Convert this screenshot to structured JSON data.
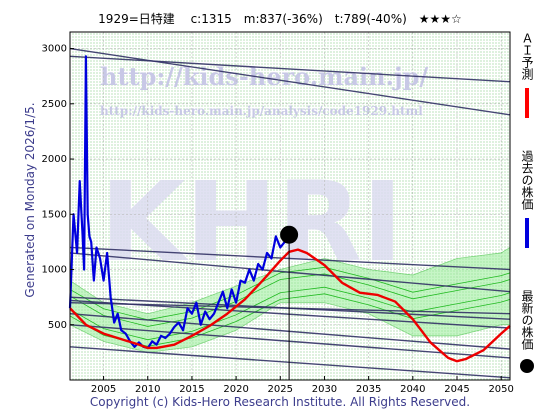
{
  "header": {
    "title": "1929=日特建 　c:1315　m:837(-36%)　t:789(-40%)　★★★☆"
  },
  "side_text": {
    "generated": "Generated on Monday 2026/1/5."
  },
  "footer": {
    "copyright": "Copyright (c) Kids-Hero Research Institute. All Rights Reserved."
  },
  "watermark": {
    "url_main": "http://kids-hero.main.jp/",
    "url_analysis": "http://kids-hero.main.jp/analysis/code1929.html",
    "logo": "KHRI"
  },
  "legend": {
    "items": [
      {
        "label": "ＡＩ予測",
        "color": "#ff0000",
        "symbol": "line"
      },
      {
        "label": "過去の株価",
        "color": "#0000dd",
        "symbol": "line"
      },
      {
        "label": "最新の株価",
        "color": "#000000",
        "symbol": "dot"
      }
    ]
  },
  "colors": {
    "blue_line": "#0000dd",
    "red_line": "#ee0000",
    "green_band": "#22bb22",
    "channel_line": "#333366",
    "yellow_fill": "#ffff99",
    "green_fill": "#99ee99"
  },
  "chart_data": {
    "type": "line",
    "title": "1929=日特建 c:1315 m:837(-36%) t:789(-40%) ★★★☆",
    "xlabel": "",
    "ylabel": "",
    "xlim": [
      2001.2,
      2051
    ],
    "ylim": [
      0,
      3150
    ],
    "x_ticks": [
      2005,
      2010,
      2015,
      2020,
      2025,
      2030,
      2035,
      2040,
      2045,
      2050
    ],
    "y_ticks": [
      500,
      1000,
      1500,
      2000,
      2500,
      3000
    ],
    "grid": true,
    "current_point": {
      "x": 2026.0,
      "y": 1315
    },
    "series": [
      {
        "name": "過去の株価",
        "x": [
          2001.2,
          2001.6,
          2002.0,
          2002.3,
          2002.6,
          2002.8,
          2003.0,
          2003.2,
          2003.4,
          2003.6,
          2003.9,
          2004.2,
          2004.6,
          2005.0,
          2005.4,
          2005.8,
          2006.2,
          2006.6,
          2007.0,
          2007.5,
          2008.0,
          2008.5,
          2009.0,
          2009.5,
          2010.0,
          2010.5,
          2011.0,
          2011.5,
          2012.0,
          2012.5,
          2013.0,
          2013.5,
          2014.0,
          2014.5,
          2015.0,
          2015.5,
          2016.0,
          2016.5,
          2017.0,
          2017.5,
          2018.0,
          2018.5,
          2019.0,
          2019.5,
          2020.0,
          2020.5,
          2021.0,
          2021.5,
          2022.0,
          2022.5,
          2023.0,
          2023.5,
          2024.0,
          2024.5,
          2025.0,
          2025.5,
          2026.0
        ],
        "y": [
          650,
          1500,
          1150,
          1800,
          1350,
          1000,
          2930,
          1500,
          1300,
          1250,
          900,
          1200,
          1100,
          900,
          1150,
          750,
          520,
          600,
          450,
          420,
          350,
          300,
          340,
          300,
          290,
          350,
          320,
          400,
          380,
          420,
          480,
          520,
          450,
          650,
          600,
          700,
          500,
          620,
          550,
          600,
          700,
          800,
          650,
          820,
          700,
          900,
          880,
          1000,
          900,
          1050,
          1000,
          1150,
          1100,
          1300,
          1200,
          1250,
          1315
        ]
      },
      {
        "name": "ＡＩ予測",
        "x": [
          2001.2,
          2003,
          2005,
          2007,
          2009,
          2010,
          2011,
          2013,
          2015,
          2017,
          2019,
          2021,
          2023,
          2025,
          2026,
          2027,
          2028,
          2030,
          2032,
          2034,
          2036,
          2038,
          2040,
          2042,
          2044,
          2045,
          2046,
          2048,
          2050,
          2051
        ],
        "y": [
          650,
          500,
          420,
          370,
          320,
          290,
          290,
          320,
          400,
          490,
          600,
          730,
          900,
          1080,
          1160,
          1180,
          1150,
          1040,
          880,
          790,
          770,
          710,
          550,
          340,
          200,
          170,
          190,
          270,
          420,
          490
        ]
      }
    ],
    "trend_lines": [
      {
        "x": [
          2001.2,
          2051
        ],
        "y": [
          2930,
          2700
        ]
      },
      {
        "x": [
          2001.2,
          2051
        ],
        "y": [
          3000,
          2400
        ]
      },
      {
        "x": [
          2001.2,
          2051
        ],
        "y": [
          1200,
          1000
        ]
      },
      {
        "x": [
          2001.2,
          2051
        ],
        "y": [
          1150,
          800
        ]
      },
      {
        "x": [
          2001.2,
          2051
        ],
        "y": [
          750,
          550
        ]
      },
      {
        "x": [
          2001.2,
          2051
        ],
        "y": [
          700,
          600
        ]
      },
      {
        "x": [
          2001.2,
          2051
        ],
        "y": [
          720,
          470
        ]
      },
      {
        "x": [
          2001.2,
          2051
        ],
        "y": [
          600,
          280
        ]
      },
      {
        "x": [
          2001.2,
          2051
        ],
        "y": [
          500,
          200
        ]
      },
      {
        "x": [
          2001.2,
          2051
        ],
        "y": [
          300,
          20
        ]
      }
    ],
    "band": {
      "x": [
        2001.2,
        2005,
        2010,
        2015,
        2020,
        2025,
        2030,
        2035,
        2040,
        2045,
        2050,
        2051
      ],
      "upper": [
        900,
        700,
        600,
        700,
        850,
        1000,
        1100,
        1000,
        950,
        1100,
        1150,
        1200
      ],
      "lower": [
        500,
        350,
        250,
        300,
        450,
        700,
        700,
        600,
        400,
        400,
        500,
        500
      ]
    }
  }
}
